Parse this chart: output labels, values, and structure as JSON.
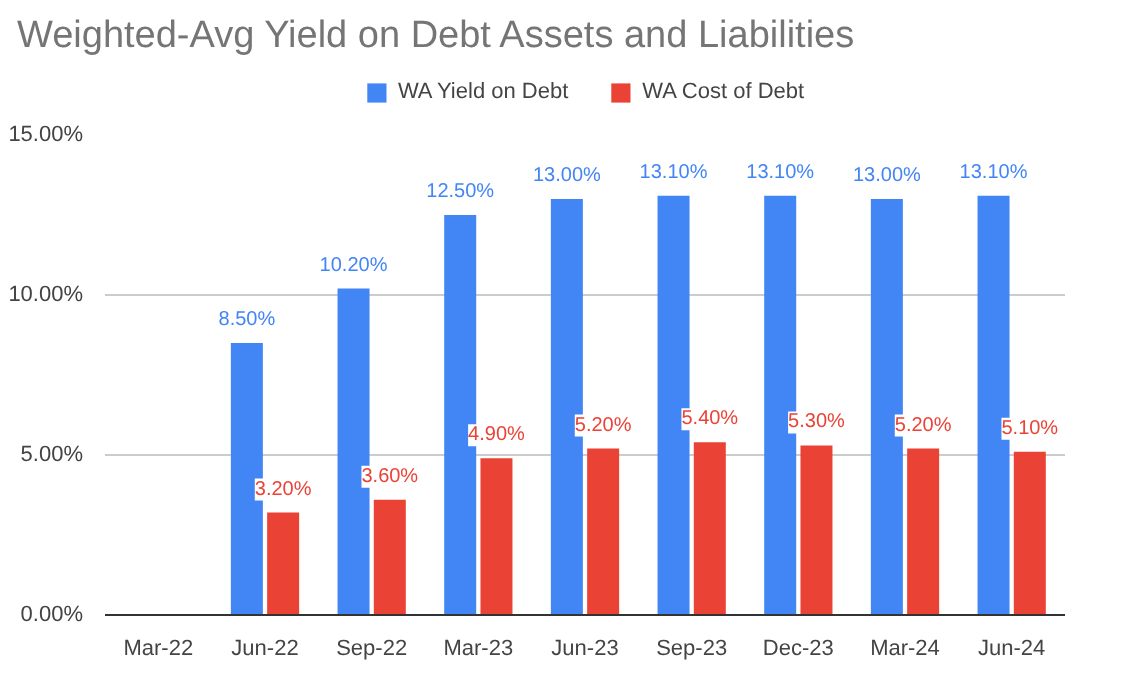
{
  "chart_data": {
    "type": "bar",
    "title": "Weighted-Avg Yield on Debt Assets and Liabilities",
    "categories": [
      "Mar-22",
      "Jun-22",
      "Sep-22",
      "Mar-23",
      "Jun-23",
      "Sep-23",
      "Dec-23",
      "Mar-24",
      "Jun-24"
    ],
    "series": [
      {
        "name": "WA Yield on Debt",
        "color": "#4285f4",
        "values": [
          null,
          8.5,
          10.2,
          12.5,
          13.0,
          13.1,
          13.1,
          13.0,
          13.1
        ],
        "value_labels": [
          null,
          "8.50%",
          "10.20%",
          "12.50%",
          "13.00%",
          "13.10%",
          "13.10%",
          "13.00%",
          "13.10%"
        ]
      },
      {
        "name": "WA Cost of Debt",
        "color": "#ea4335",
        "values": [
          null,
          3.2,
          3.6,
          4.9,
          5.2,
          5.4,
          5.3,
          5.2,
          5.1
        ],
        "value_labels": [
          null,
          "3.20%",
          "3.60%",
          "4.90%",
          "5.20%",
          "5.40%",
          "5.30%",
          "5.20%",
          "5.10%"
        ]
      }
    ],
    "ylim": [
      0,
      15
    ],
    "yticks": [
      {
        "value": 0,
        "label": "0.00%"
      },
      {
        "value": 5,
        "label": "5.00%"
      },
      {
        "value": 10,
        "label": "10.00%"
      },
      {
        "value": 15,
        "label": "15.00%"
      }
    ],
    "grid": "y",
    "legend": "top"
  }
}
